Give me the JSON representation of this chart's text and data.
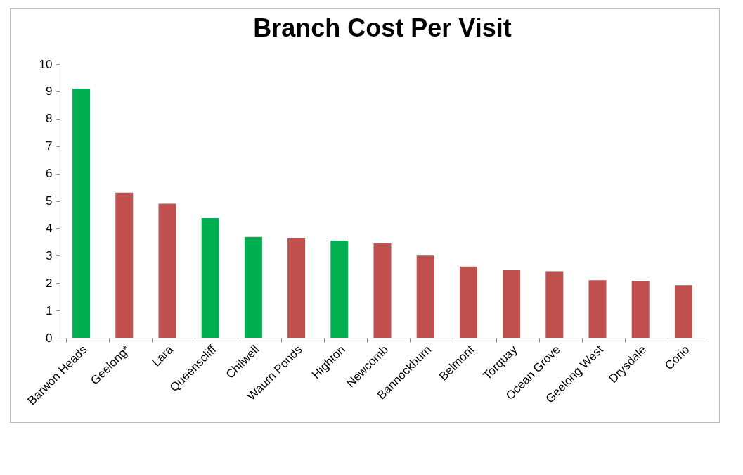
{
  "chart_data": {
    "type": "bar",
    "title": "Branch Cost Per Visit",
    "categories": [
      "Barwon Heads",
      "Geelong*",
      "Lara",
      "Queenscliff",
      "Chilwell",
      "Waurn Ponds",
      "Highton",
      "Newcomb",
      "Bannockburn",
      "Belmont",
      "Torquay",
      "Ocean Grove",
      "Geelong West",
      "Drysdale",
      "Corio"
    ],
    "values": [
      9.1,
      5.3,
      4.9,
      4.37,
      3.68,
      3.65,
      3.55,
      3.45,
      3.0,
      2.6,
      2.47,
      2.43,
      2.1,
      2.08,
      1.92
    ],
    "colors": [
      "#00b050",
      "#c0504d",
      "#c0504d",
      "#00b050",
      "#00b050",
      "#c0504d",
      "#00b050",
      "#c0504d",
      "#c0504d",
      "#c0504d",
      "#c0504d",
      "#c0504d",
      "#c0504d",
      "#c0504d",
      "#c0504d"
    ],
    "ylim": [
      0,
      10
    ],
    "yticks": [
      0,
      1,
      2,
      3,
      4,
      5,
      6,
      7,
      8,
      9,
      10
    ],
    "grid": false,
    "legend": false
  }
}
